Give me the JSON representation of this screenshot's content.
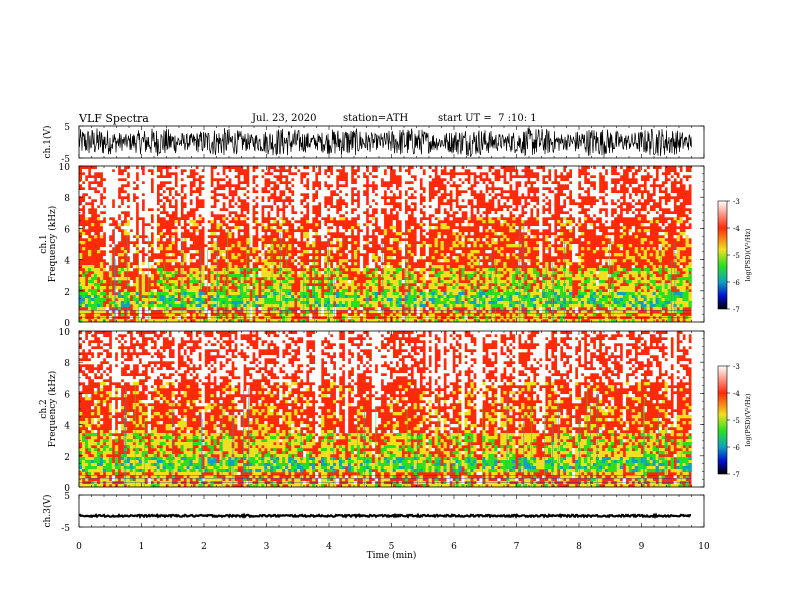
{
  "header": {
    "title": "VLF Spectra",
    "date": "Jul. 23, 2020",
    "station": "station=ATH",
    "start": "start UT =  7 :10: 1"
  },
  "chart_data": [
    {
      "type": "line",
      "panel": "ch1-waveform",
      "ylabel": "ch.1(V)",
      "ylim": [
        -5,
        5
      ],
      "yticks": [
        "5",
        "-5"
      ],
      "xlim": [
        0,
        10
      ],
      "note_amplitude_range": [
        -4.5,
        4.5
      ]
    },
    {
      "type": "heatmap",
      "panel": "ch1-spectrogram",
      "ylabel": "ch.1\nFrequency (kHz)",
      "ylim": [
        0,
        10
      ],
      "yticks": [
        "10",
        "8",
        "6",
        "4",
        "2",
        "0"
      ],
      "xlim": [
        0,
        10
      ],
      "colorbar": {
        "label": "log(PSD)(V²/Hz)",
        "range": [
          -7,
          -3
        ],
        "ticks": [
          "-3",
          "-4",
          "-5",
          "-6",
          "-7"
        ],
        "colors": [
          "#ffffff",
          "#ff2a0a",
          "#f0e020",
          "#28e020",
          "#10a0c0",
          "#0010d0",
          "#000000"
        ]
      }
    },
    {
      "type": "heatmap",
      "panel": "ch2-spectrogram",
      "ylabel": "ch.2\nFrequency (kHz)",
      "ylim": [
        0,
        10
      ],
      "yticks": [
        "10",
        "8",
        "6",
        "4",
        "2",
        "0"
      ],
      "xlim": [
        0,
        10
      ],
      "colorbar": {
        "label": "log(PSD)(V²/Hz)",
        "range": [
          -7,
          -3
        ],
        "ticks": [
          "-3",
          "-4",
          "-5",
          "-6",
          "-7"
        ],
        "colors": [
          "#ffffff",
          "#ff2a0a",
          "#f0e020",
          "#28e020",
          "#10a0c0",
          "#0010d0",
          "#000000"
        ]
      }
    },
    {
      "type": "line",
      "panel": "ch3-waveform",
      "ylabel": "ch.3(V)",
      "ylim": [
        -5,
        5
      ],
      "yticks": [
        "5",
        "-5"
      ],
      "xlim": [
        0,
        10
      ],
      "xlabel": "Time (min)",
      "xticks": [
        "0",
        "1",
        "2",
        "3",
        "4",
        "5",
        "6",
        "7",
        "8",
        "9",
        "10"
      ],
      "note_level": -1.5,
      "data_end_min": 9.8
    }
  ]
}
